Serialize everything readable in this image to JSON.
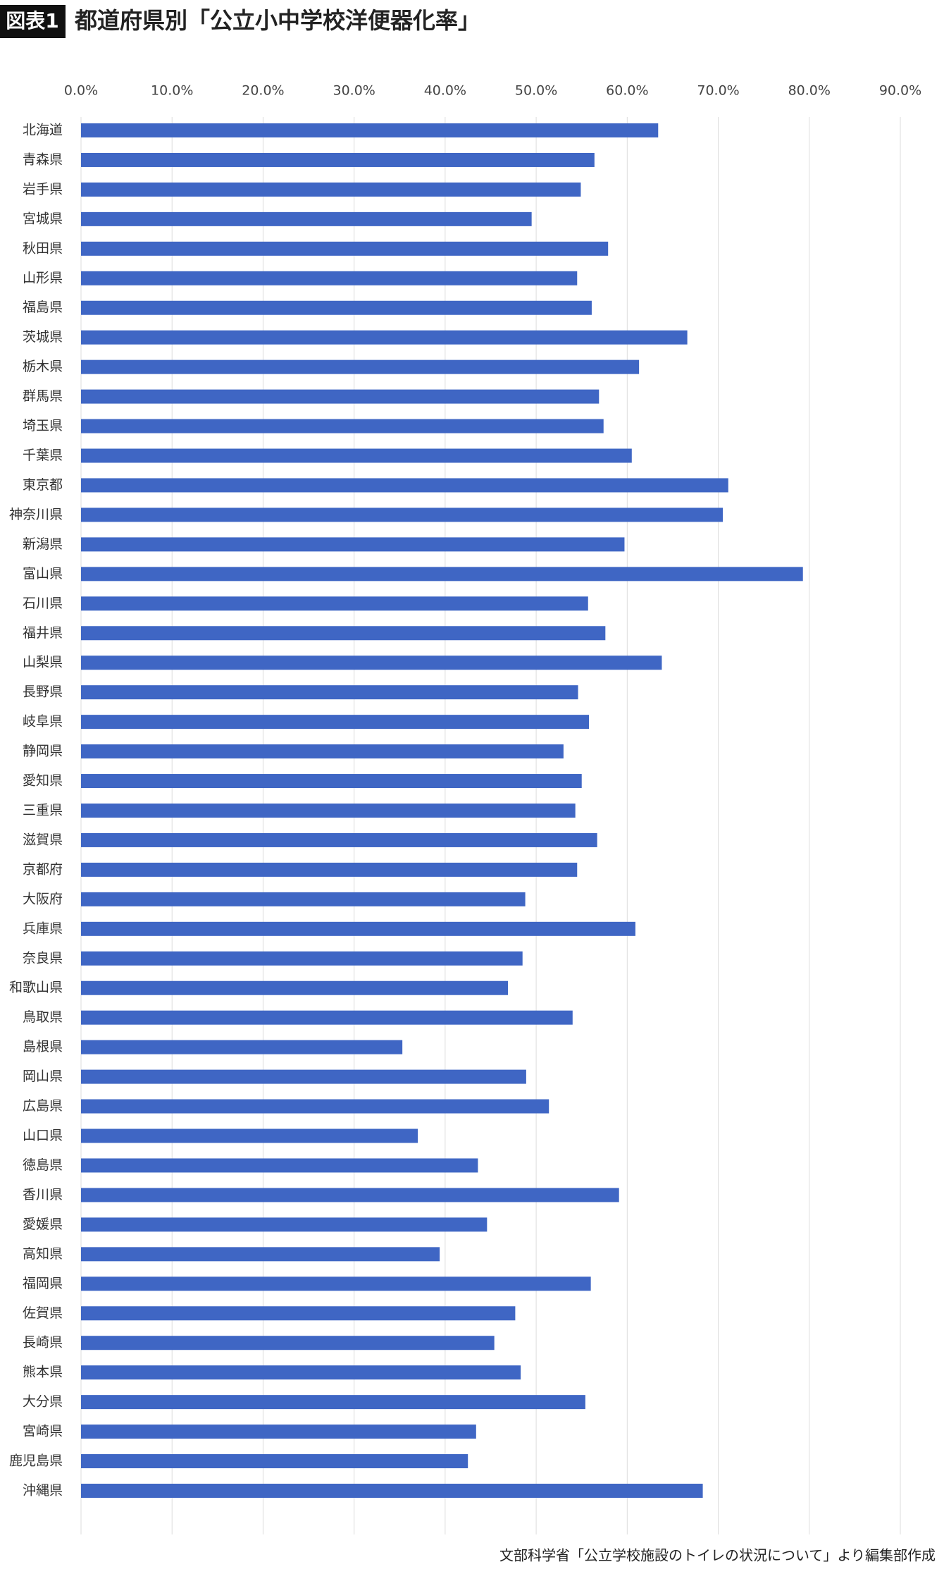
{
  "chart_data": {
    "type": "bar",
    "figure_label": "図表1",
    "title": "都道府県別「公立小中学校洋便器化率」",
    "source": "文部科学省「公立学校施設のトイレの状況について」より編集部作成",
    "categories": [
      "北海道",
      "青森県",
      "岩手県",
      "宮城県",
      "秋田県",
      "山形県",
      "福島県",
      "茨城県",
      "栃木県",
      "群馬県",
      "埼玉県",
      "千葉県",
      "東京都",
      "神奈川県",
      "新潟県",
      "富山県",
      "石川県",
      "福井県",
      "山梨県",
      "長野県",
      "岐阜県",
      "静岡県",
      "愛知県",
      "三重県",
      "滋賀県",
      "京都府",
      "大阪府",
      "兵庫県",
      "奈良県",
      "和歌山県",
      "鳥取県",
      "島根県",
      "岡山県",
      "広島県",
      "山口県",
      "徳島県",
      "香川県",
      "愛媛県",
      "高知県",
      "福岡県",
      "佐賀県",
      "長崎県",
      "熊本県",
      "大分県",
      "宮崎県",
      "鹿児島県",
      "沖縄県"
    ],
    "values": [
      63.4,
      56.4,
      54.9,
      49.5,
      57.9,
      54.5,
      56.1,
      66.6,
      61.3,
      56.9,
      57.4,
      60.5,
      71.1,
      70.5,
      59.7,
      79.3,
      55.7,
      57.6,
      63.8,
      54.6,
      55.8,
      53.0,
      55.0,
      54.3,
      56.7,
      54.5,
      48.8,
      60.9,
      48.5,
      46.9,
      54.0,
      35.3,
      48.9,
      51.4,
      37.0,
      43.6,
      59.1,
      44.6,
      39.4,
      56.0,
      47.7,
      45.4,
      48.3,
      55.4,
      43.4,
      42.5,
      68.3
    ],
    "color": "#3f66c4",
    "xlim": [
      0,
      90
    ],
    "xticks": [
      {
        "value": 0,
        "label": "0.0%"
      },
      {
        "value": 10,
        "label": "10.0%"
      },
      {
        "value": 20,
        "label": "20.0%"
      },
      {
        "value": 30,
        "label": "30.0%"
      },
      {
        "value": 40,
        "label": "40.0%"
      },
      {
        "value": 50,
        "label": "50.0%"
      },
      {
        "value": 60,
        "label": "60.0%"
      },
      {
        "value": 70,
        "label": "70.0%"
      },
      {
        "value": 80,
        "label": "80.0%"
      },
      {
        "value": 90,
        "label": "90.0%"
      }
    ],
    "grid": true
  }
}
